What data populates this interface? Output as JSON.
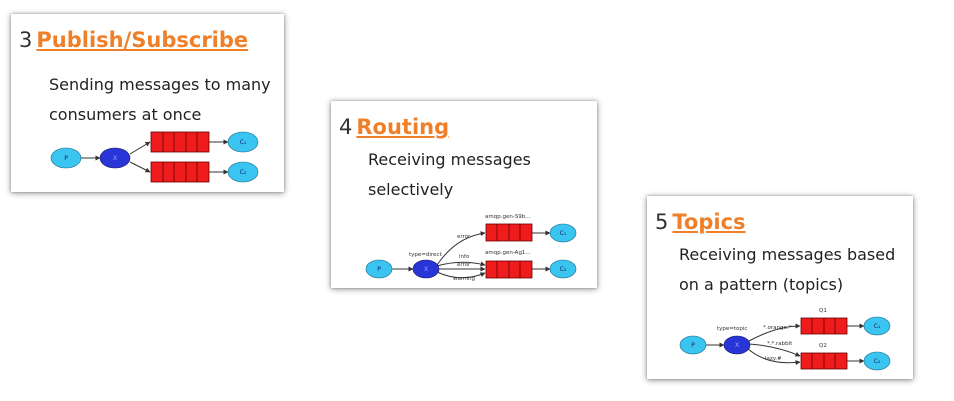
{
  "tutorials": [
    {
      "number": "3",
      "title": "Publish/Subscribe",
      "description_lines": [
        "Sending messages to many",
        "consumers at once"
      ],
      "diagram": {
        "producer": "P",
        "exchange": "X",
        "consumers": [
          "C₁",
          "C₂"
        ]
      }
    },
    {
      "number": "4",
      "title": "Routing",
      "description_lines": [
        "Receiving messages",
        "selectively"
      ],
      "diagram": {
        "producer": "P",
        "exchange": "X",
        "exchange_type": "type=direct",
        "queues": [
          "amqp.gen-S9b...",
          "amqp.gen-Ag1..."
        ],
        "bindings": [
          "error",
          "info",
          "error",
          "warning"
        ],
        "consumers": [
          "C₁",
          "C₂"
        ]
      }
    },
    {
      "number": "5",
      "title": "Topics",
      "description_lines": [
        "Receiving messages based",
        "on a pattern (topics)"
      ],
      "diagram": {
        "producer": "P",
        "exchange": "X",
        "exchange_type": "type=topic",
        "queues": [
          "Q1",
          "Q2"
        ],
        "bindings": [
          "*.orange.*",
          "*.*.rabbit",
          "lazy.#"
        ],
        "consumers": [
          "C₁",
          "C₂"
        ]
      }
    }
  ],
  "colors": {
    "title_link": "#f07f2a",
    "producer_fill": "#39c5f0",
    "exchange_fill": "#2a35d8",
    "queue_fill": "#ee1c1c",
    "consumer_fill": "#39c5f0"
  }
}
